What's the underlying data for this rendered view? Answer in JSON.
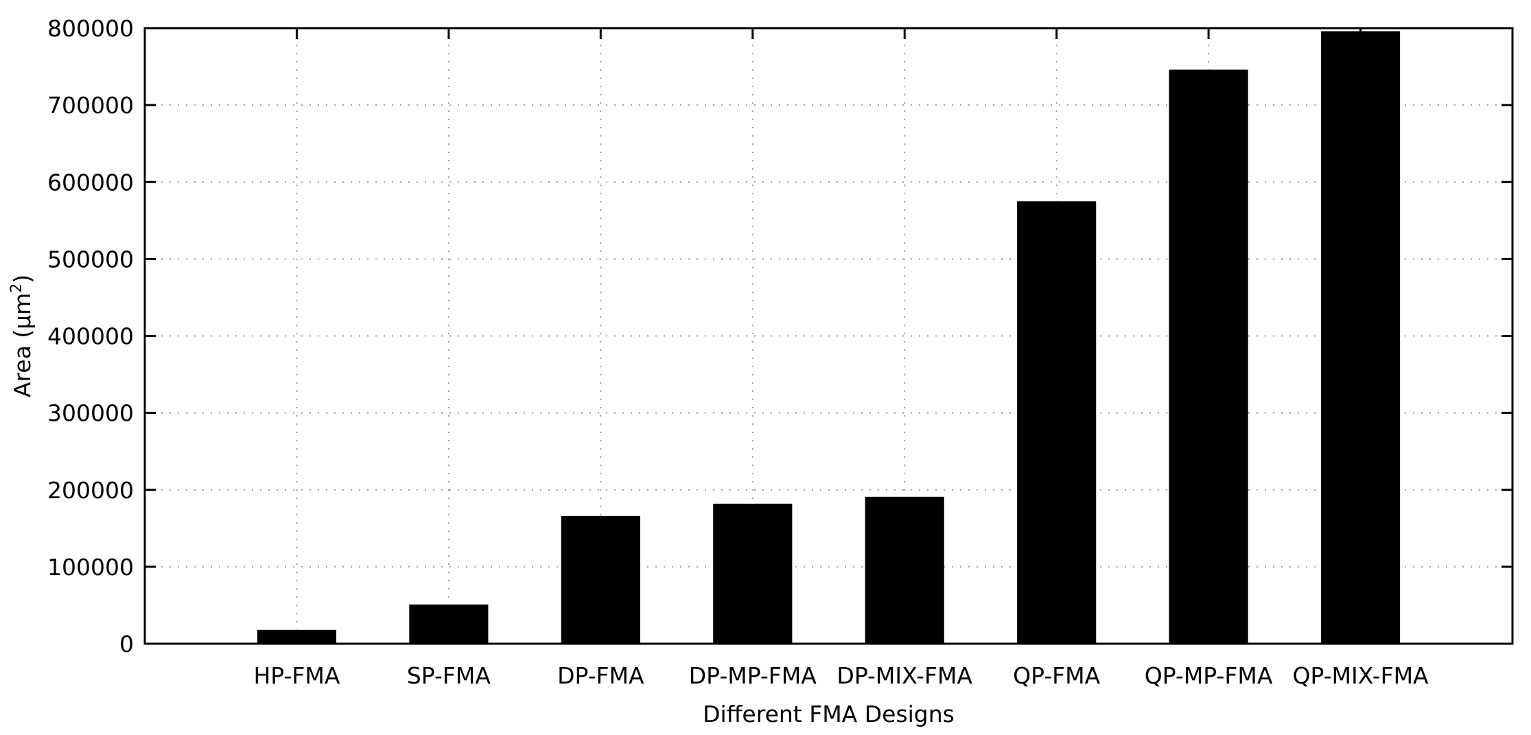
{
  "chart_data": {
    "type": "bar",
    "title": "",
    "xlabel": "Different FMA Designs",
    "ylabel": "Area (µm",
    "ylabel_superscript": "2",
    "ylabel_suffix": ")",
    "categories": [
      "HP-FMA",
      "SP-FMA",
      "DP-FMA",
      "DP-MP-FMA",
      "DP-MIX-FMA",
      "QP-FMA",
      "QP-MP-FMA",
      "QP-MIX-FMA"
    ],
    "values": [
      18000,
      51000,
      166000,
      182000,
      191000,
      575000,
      746000,
      796000
    ],
    "ylim": [
      0,
      800000
    ],
    "yticks": [
      0,
      100000,
      200000,
      300000,
      400000,
      500000,
      600000,
      700000,
      800000
    ],
    "ytick_labels": [
      "0",
      "100000",
      "200000",
      "300000",
      "400000",
      "500000",
      "600000",
      "700000",
      "800000"
    ],
    "grid": true,
    "bar_color": "#000000",
    "grid_color": "#9a9a9a"
  }
}
